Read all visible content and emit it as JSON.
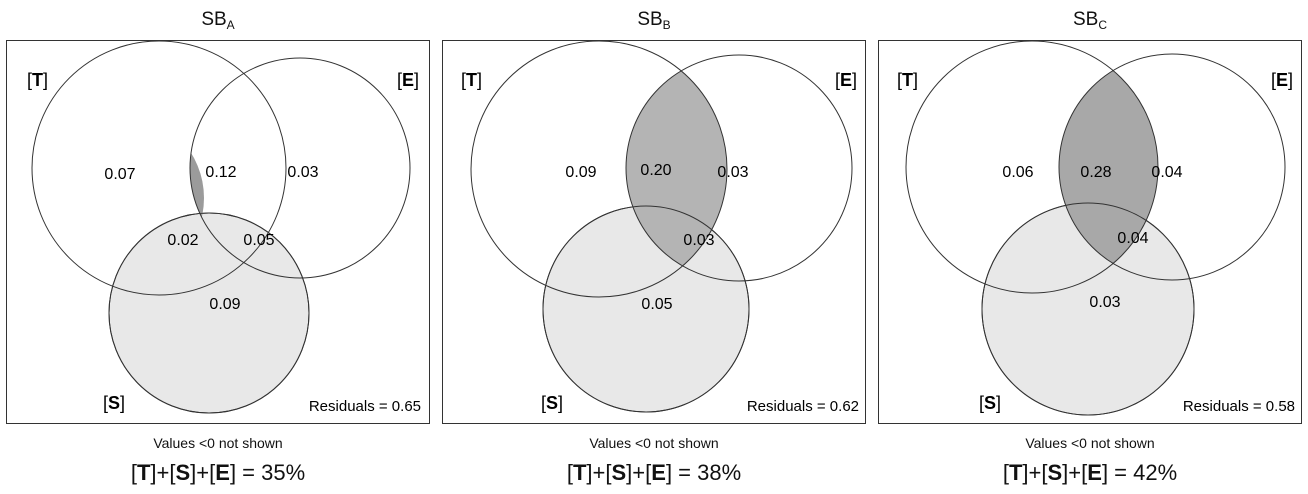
{
  "panels": [
    {
      "title": "SB",
      "subscript": "A",
      "set_labels": {
        "T": "[T]",
        "E": "[E]",
        "S": "[S]"
      },
      "values": {
        "T_only": "0.07",
        "T_E": "0.12",
        "E_only": "0.03",
        "T_S": "0.02",
        "E_S": "0.05",
        "S_only": "0.09"
      },
      "residuals": "Residuals = 0.65",
      "note": "Values <0 not shown",
      "total": {
        "T": "T",
        "S": "S",
        "E": "E",
        "value": "35%"
      },
      "fill": {
        "intersection_TE": "#9b9b9b",
        "S_circle": "#e8e8e8"
      }
    },
    {
      "title": "SB",
      "subscript": "B",
      "set_labels": {
        "T": "[T]",
        "E": "[E]",
        "S": "[S]"
      },
      "values": {
        "T_only": "0.09",
        "T_E": "0.20",
        "E_only": "0.03",
        "T_S": "",
        "E_S": "0.03",
        "S_only": "0.05"
      },
      "residuals": "Residuals = 0.62",
      "note": "Values <0 not shown",
      "total": {
        "T": "T",
        "S": "S",
        "E": "E",
        "value": "38%"
      },
      "fill": {
        "intersection_TE": "#b4b4b4",
        "S_circle": "#e8e8e8"
      }
    },
    {
      "title": "SB",
      "subscript": "C",
      "set_labels": {
        "T": "[T]",
        "E": "[E]",
        "S": "[S]"
      },
      "values": {
        "T_only": "0.06",
        "T_E": "0.28",
        "E_only": "0.04",
        "T_S": "",
        "E_S": "0.04",
        "S_only": "0.03"
      },
      "residuals": "Residuals = 0.58",
      "note": "Values <0 not shown",
      "total": {
        "T": "T",
        "S": "S",
        "E": "E",
        "value": "42%"
      },
      "fill": {
        "intersection_TE": "#a8a8a8",
        "S_circle": "#e8e8e8"
      }
    }
  ]
}
